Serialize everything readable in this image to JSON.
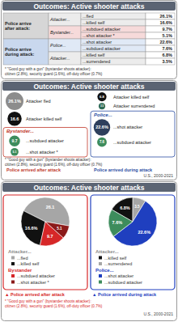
{
  "chart_data": [
    {
      "type": "table",
      "title": "Outcomes: Active shooter attacks",
      "groups": [
        {
          "label": "Police arrive after attack:",
          "color": "#d6d6d6",
          "subgroups": [
            {
              "label": "Attacker...",
              "color": "#ececec",
              "rows": [
                {
                  "label": "...fled",
                  "value": "26.1%"
                },
                {
                  "label": "...killed self",
                  "value": "16.6%"
                }
              ]
            },
            {
              "label": "Bystander...",
              "color": "#f6dada",
              "rows": [
                {
                  "label": "...subdued attacker",
                  "value": "9.7%"
                },
                {
                  "label": "...shot attacker *",
                  "value": "5.1%"
                }
              ]
            }
          ]
        },
        {
          "label": "Police arrive during attack:",
          "color": "#c9d8ee",
          "subgroups": [
            {
              "label": "Police...",
              "color": "#e0e9f6",
              "rows": [
                {
                  "label": "...shot attacker",
                  "value": "22.6%"
                },
                {
                  "label": "...subdued attacker",
                  "value": "7.6%"
                }
              ]
            },
            {
              "label": "Attacker...",
              "color": "#ececec",
              "rows": [
                {
                  "label": "...killed self",
                  "value": "6.8%"
                },
                {
                  "label": "...surrendered",
                  "value": "3.5%"
                }
              ]
            }
          ]
        }
      ],
      "footnote": [
        "* \"Good guy with a gun\" (bystander shoots attacker):",
        "citizen (2.8%), security guard (1.6%), off-duty officer (0.7%)"
      ]
    },
    {
      "type": "bubble",
      "title": "Outcomes: Active shooter attacks",
      "groups": [
        {
          "label": "Police arrived after attack",
          "color": "#c0392b",
          "sections": [
            {
              "items": [
                {
                  "label": "Attacker fled",
                  "value": 26.1,
                  "value_label": "26.1%",
                  "color": "#8c8c8c"
                },
                {
                  "label": "Attacker killed self",
                  "value": 16.6,
                  "color": "#111111"
                }
              ]
            },
            {
              "name": "Bystander...",
              "color": "#c0392b",
              "items": [
                {
                  "label": "...subdued attacker",
                  "value": 9.7,
                  "color": "#3d8c5c"
                },
                {
                  "label": "...shot attacker *",
                  "value": 5.1,
                  "color": "#3d8c5c"
                }
              ]
            }
          ]
        },
        {
          "label": "Police arrived during attack",
          "color": "#2c4fa3",
          "sections": [
            {
              "items": [
                {
                  "label": "Attacker killed self",
                  "value": 6.8,
                  "color": "#111111"
                },
                {
                  "label": "Attacker surrendered",
                  "value": 3.5,
                  "color": "#2f6b55"
                }
              ]
            },
            {
              "name": "Police...",
              "color": "#2c4fa3",
              "items": [
                {
                  "label": "...shot attacker",
                  "value": 22.6,
                  "value_label": "22.6%",
                  "color": "#2e3f5c"
                },
                {
                  "label": "...subdued attacker",
                  "value": 7.6,
                  "color": "#3d8c5c"
                }
              ]
            }
          ]
        }
      ],
      "footnote": [
        "* \"Good guy with a gun\" (bystander shoots attacker):",
        "citizen (2.8%), security guard (1.6%), off-duty officer (0.7%)"
      ],
      "source": "U.S., 2000-2021"
    },
    {
      "type": "pie",
      "title": "Outcomes: Active shooter attacks",
      "groups": [
        {
          "label": "▲ Police arrived after attack",
          "color": "#d62728",
          "sections": [
            {
              "name": "Attacker...",
              "color": "#8c8c8c",
              "items": [
                {
                  "label": "...fled",
                  "value": 26.1,
                  "color": "#a6a6a6"
                },
                {
                  "label": "...killed self",
                  "value": 16.6,
                  "value_label": "16.6%",
                  "color": "#111111"
                }
              ]
            },
            {
              "name": "Bystander",
              "color": "#d62728",
              "items": [
                {
                  "label": "...subdued attacker",
                  "value": 9.7,
                  "color": "#d62728"
                },
                {
                  "label": "...shot attacker *",
                  "value": 5.1,
                  "color": "#8b1a1a"
                }
              ]
            }
          ]
        },
        {
          "label": "▲ Police arrived during attack",
          "color": "#1f3fbf",
          "sections": [
            {
              "name": "Attacker...",
              "color": "#8c8c8c",
              "items": [
                {
                  "label": "...killed self",
                  "value": 6.8,
                  "value_label": "6.8%",
                  "color": "#111111"
                },
                {
                  "label": "...surrendered",
                  "value": 3.5,
                  "color": "#a6a6a6"
                }
              ]
            },
            {
              "name": "Police...",
              "color": "#1f3fbf",
              "items": [
                {
                  "label": "...shot attacker",
                  "value": 22.6,
                  "value_label": "22.6%",
                  "color": "#1f3fbf"
                },
                {
                  "label": "...subdued attacker",
                  "value": 7.6,
                  "value_label": "7.6%",
                  "color": "#3d8c5c"
                }
              ]
            }
          ]
        }
      ],
      "footnote": [
        "* \"Good guy with a gun\" (bystander shoots attacker):",
        "citizen (2.8%), security guard (1.6%), off-duty officer (0.7%)"
      ],
      "source": "U.S., 2000-2021"
    }
  ]
}
